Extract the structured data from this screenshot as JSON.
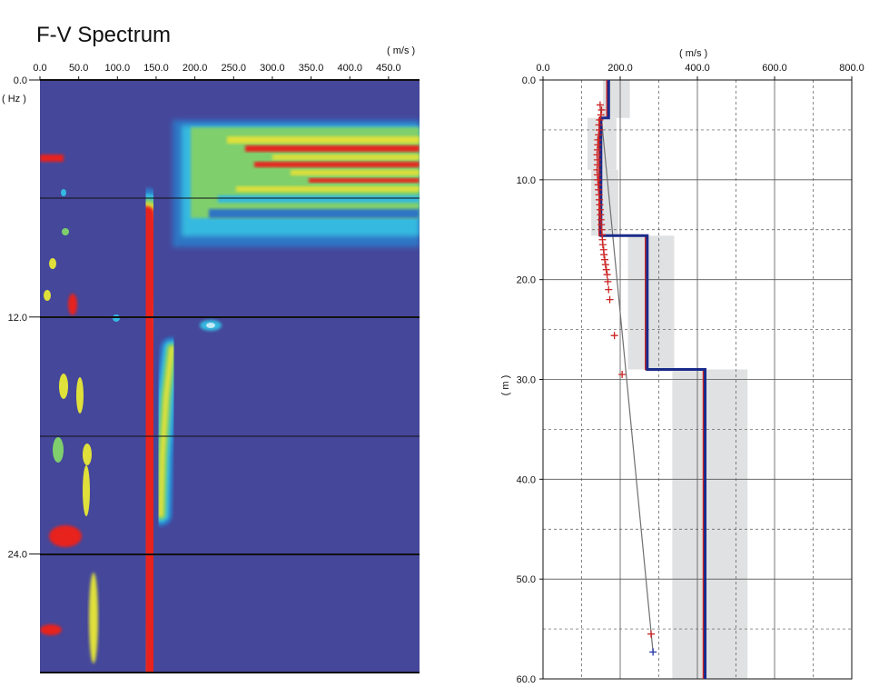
{
  "chart_data": [
    {
      "type": "heatmap",
      "title": "F-V Spectrum",
      "x_unit_label": "( m/s )",
      "y_unit_label": "( Hz )",
      "x_ticks": [
        "0.0",
        "50.0",
        "100.0",
        "150.0",
        "200.0",
        "250.0",
        "300.0",
        "350.0",
        "400.0",
        "450.0"
      ],
      "y_ticks": [
        "0.0",
        "12.0",
        "24.0"
      ],
      "xlim": [
        0,
        490
      ],
      "ylim": [
        0,
        30
      ],
      "colormap": [
        "#45479a",
        "#2f74c4",
        "#34b9e0",
        "#7fcf6d",
        "#dfe03a",
        "#e8211d"
      ],
      "main_ridge": {
        "points": [
          [
            138,
            6.8
          ],
          [
            140,
            8
          ],
          [
            143,
            9
          ],
          [
            140,
            10.5
          ],
          [
            138,
            12
          ],
          [
            140,
            14
          ],
          [
            142,
            17
          ],
          [
            143,
            20
          ],
          [
            144,
            23
          ],
          [
            144,
            26
          ],
          [
            145,
            30
          ]
        ]
      },
      "secondary_ridge": {
        "points": [
          [
            170,
            13.6
          ],
          [
            163,
            16
          ],
          [
            158,
            19
          ],
          [
            156,
            22
          ]
        ]
      }
    },
    {
      "type": "line",
      "x_unit_label": "( m/s )",
      "y_unit_label": "( m )",
      "x_ticks": [
        "0.0",
        "200.0",
        "400.0",
        "600.0",
        "800.0"
      ],
      "y_ticks": [
        "0.0",
        "10.0",
        "20.0",
        "30.0",
        "40.0",
        "50.0",
        "60.0"
      ],
      "xlim": [
        0,
        800
      ],
      "ylim": [
        0,
        60
      ],
      "colors": {
        "model": "#1a2a8a",
        "initial_model": "#cc2222",
        "observed": "#cc2222",
        "last_points": "#2233aa",
        "trend": "#707070",
        "uncertainty": "#e0e1e2"
      },
      "layer_model": {
        "velocities": [
          170,
          150,
          270,
          420
        ],
        "depth_tops": [
          0,
          3.8,
          15.6,
          29.0
        ],
        "depth_bottom": 60
      },
      "uncertainty_bands": [
        {
          "depth": [
            0,
            3.8
          ],
          "v": [
            155,
            225
          ]
        },
        {
          "depth": [
            3.8,
            9
          ],
          "v": [
            115,
            190
          ]
        },
        {
          "depth": [
            9,
            15.6
          ],
          "v": [
            125,
            195
          ]
        },
        {
          "depth": [
            15.6,
            29.0
          ],
          "v": [
            220,
            340
          ]
        },
        {
          "depth": [
            29.0,
            60
          ],
          "v": [
            335,
            530
          ]
        }
      ],
      "dispersion_points": [
        [
          148,
          2.5
        ],
        [
          152,
          3
        ],
        [
          150,
          3.5
        ],
        [
          147,
          4
        ],
        [
          145,
          4.5
        ],
        [
          146,
          5
        ],
        [
          144,
          5.5
        ],
        [
          142,
          6
        ],
        [
          142,
          6.5
        ],
        [
          141,
          7
        ],
        [
          140,
          7.5
        ],
        [
          141,
          8
        ],
        [
          141,
          8.5
        ],
        [
          140,
          9
        ],
        [
          141,
          9.5
        ],
        [
          142,
          10
        ],
        [
          143,
          10.5
        ],
        [
          144,
          11
        ],
        [
          145,
          11.5
        ],
        [
          146,
          12
        ],
        [
          147,
          12.5
        ],
        [
          148,
          13
        ],
        [
          149,
          13.5
        ],
        [
          150,
          14
        ],
        [
          151,
          14.5
        ],
        [
          152,
          15
        ],
        [
          153,
          15.5
        ],
        [
          154,
          16
        ],
        [
          155,
          16.5
        ],
        [
          157,
          17
        ],
        [
          158,
          17.5
        ],
        [
          160,
          18
        ],
        [
          162,
          18.5
        ],
        [
          164,
          19
        ],
        [
          166,
          19.5
        ],
        [
          168,
          20.2
        ],
        [
          170,
          21
        ],
        [
          173,
          22
        ],
        [
          185,
          25.6
        ],
        [
          205,
          29.5
        ],
        [
          280,
          55.5
        ]
      ],
      "last_point": [
        285,
        57.3
      ]
    }
  ]
}
